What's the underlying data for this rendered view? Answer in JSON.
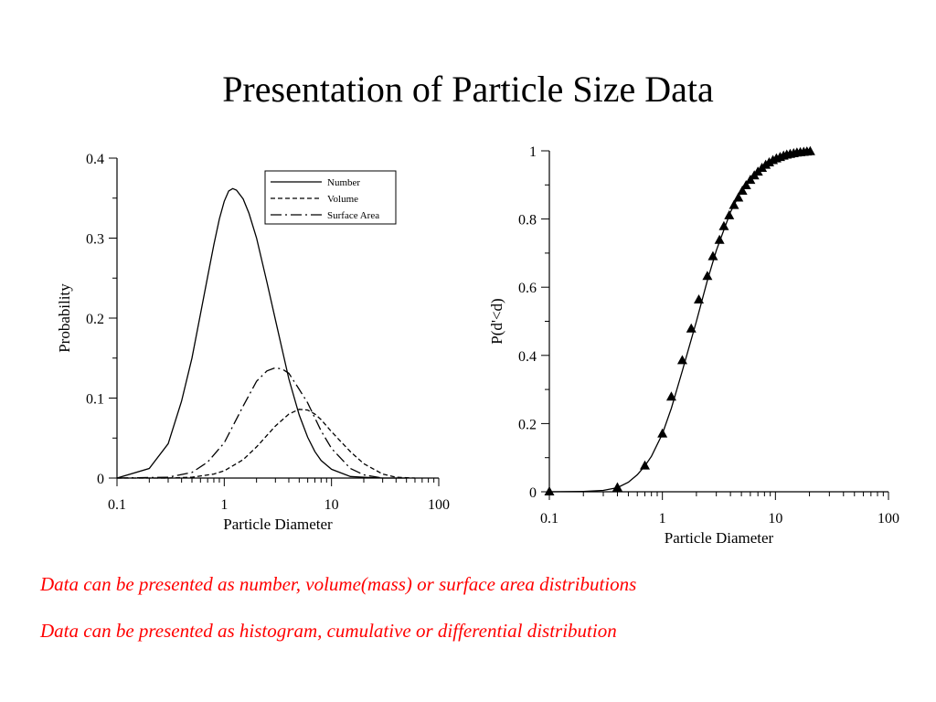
{
  "slide": {
    "title": "Presentation of Particle Size Data",
    "notes": [
      "Data can be presented as number, volume(mass) or surface area distributions",
      "Data can be presented as histogram, cumulative or differential distribution"
    ],
    "note_color": "#ff0000"
  },
  "chart_data": [
    {
      "type": "line",
      "xlabel": "Particle Diameter",
      "ylabel": "Probability",
      "xscale": "log",
      "xlim": [
        0.1,
        100
      ],
      "ylim": [
        0,
        0.4
      ],
      "xticks": [
        "0.1",
        "1",
        "10",
        "100"
      ],
      "yticks": [
        "0",
        "0.1",
        "0.2",
        "0.3",
        "0.4"
      ],
      "legend_position": "top-right",
      "series": [
        {
          "name": "Number",
          "style": "solid",
          "x": [
            0.1,
            0.2,
            0.3,
            0.4,
            0.5,
            0.6,
            0.7,
            0.8,
            0.9,
            1.0,
            1.1,
            1.2,
            1.3,
            1.5,
            1.7,
            2.0,
            2.5,
            3.0,
            4.0,
            5.0,
            6.0,
            7.0,
            8.0,
            10,
            15,
            20,
            30,
            40,
            50
          ],
          "y": [
            0.0,
            0.012,
            0.043,
            0.096,
            0.15,
            0.205,
            0.252,
            0.292,
            0.324,
            0.346,
            0.359,
            0.362,
            0.36,
            0.349,
            0.331,
            0.3,
            0.245,
            0.198,
            0.124,
            0.079,
            0.051,
            0.033,
            0.022,
            0.011,
            0.002,
            0.001,
            0.0,
            0.0,
            0.0
          ]
        },
        {
          "name": "Volume",
          "style": "dashed",
          "x": [
            0.1,
            0.3,
            0.5,
            0.8,
            1.0,
            1.5,
            2.0,
            3.0,
            4.0,
            5.0,
            6.0,
            7.0,
            8.0,
            10,
            15,
            20,
            30,
            40,
            60
          ],
          "y": [
            0.0,
            0.0,
            0.001,
            0.005,
            0.009,
            0.023,
            0.039,
            0.065,
            0.08,
            0.086,
            0.085,
            0.08,
            0.073,
            0.058,
            0.033,
            0.018,
            0.005,
            0.001,
            0.0
          ]
        },
        {
          "name": "Surface Area",
          "style": "dash-dot",
          "x": [
            0.1,
            0.3,
            0.5,
            0.7,
            1.0,
            1.5,
            2.0,
            2.5,
            3.0,
            3.5,
            4.0,
            5.0,
            6.0,
            8.0,
            10,
            15,
            20,
            30
          ],
          "y": [
            0.0,
            0.001,
            0.007,
            0.02,
            0.044,
            0.09,
            0.121,
            0.134,
            0.138,
            0.136,
            0.131,
            0.111,
            0.094,
            0.059,
            0.037,
            0.012,
            0.004,
            0.0
          ]
        }
      ]
    },
    {
      "type": "line",
      "xlabel": "Particle Diameter",
      "ylabel": "P(d'<d)",
      "xscale": "log",
      "xlim": [
        0.1,
        100
      ],
      "ylim": [
        0,
        1
      ],
      "xticks": [
        "0.1",
        "1",
        "10",
        "100"
      ],
      "yticks": [
        "0",
        "0.2",
        "0.4",
        "0.6",
        "0.8",
        "1"
      ],
      "series": [
        {
          "style": "solid",
          "x": [
            0.1,
            0.2,
            0.3,
            0.4,
            0.5,
            0.6,
            0.7,
            0.8,
            1.0,
            1.2,
            1.5,
            2.0,
            2.5,
            3.0,
            4.0,
            5.0,
            6.0,
            8.0,
            10,
            12,
            15,
            20,
            21
          ],
          "y": [
            0.0,
            0.001,
            0.004,
            0.012,
            0.028,
            0.05,
            0.076,
            0.104,
            0.17,
            0.245,
            0.354,
            0.5,
            0.62,
            0.708,
            0.82,
            0.883,
            0.922,
            0.96,
            0.978,
            0.988,
            0.993,
            0.997,
            0.998
          ]
        },
        {
          "style": "triangle-markers",
          "x": [
            0.1,
            0.4,
            0.7,
            1.0,
            1.2,
            1.5,
            1.8,
            2.1,
            2.5,
            2.8,
            3.2,
            3.5,
            3.9,
            4.3,
            4.7,
            5.1,
            5.5,
            6.0,
            6.5,
            7.0,
            7.6,
            8.2,
            8.8,
            9.5,
            10.2,
            11,
            11.8,
            12.6,
            13.5,
            14.5,
            15.5,
            16.6,
            17.8,
            19,
            20.3
          ],
          "y": [
            0.0,
            0.012,
            0.076,
            0.17,
            0.278,
            0.385,
            0.478,
            0.563,
            0.632,
            0.69,
            0.738,
            0.778,
            0.81,
            0.84,
            0.862,
            0.882,
            0.898,
            0.914,
            0.927,
            0.938,
            0.949,
            0.958,
            0.965,
            0.972,
            0.977,
            0.981,
            0.985,
            0.988,
            0.99,
            0.992,
            0.994,
            0.995,
            0.996,
            0.997,
            0.998
          ]
        }
      ]
    }
  ]
}
